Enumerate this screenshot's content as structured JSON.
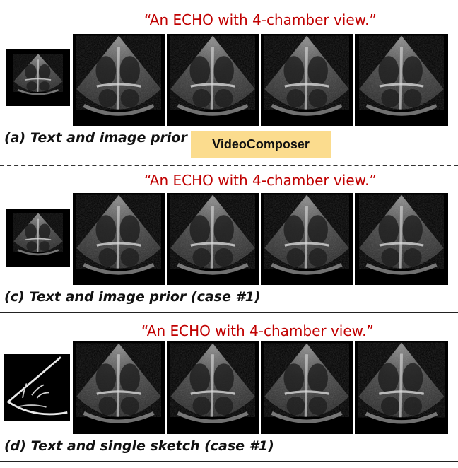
{
  "panels": {
    "a": {
      "prompt": "“An ECHO with 4-chamber view.”",
      "caption": "(a) Text and image prior",
      "badge": "VideoComposer"
    },
    "c": {
      "prompt": "“An ECHO with 4-chamber view.”",
      "caption": "(c) Text and image prior (case #1)"
    },
    "d": {
      "prompt": "“An ECHO with 4-chamber view.”",
      "caption": "(d) Text and single sketch (case #1)"
    }
  },
  "colors": {
    "prompt_text": "#c00000",
    "badge_background": "#fbdc8e",
    "frame_background": "#000000"
  }
}
